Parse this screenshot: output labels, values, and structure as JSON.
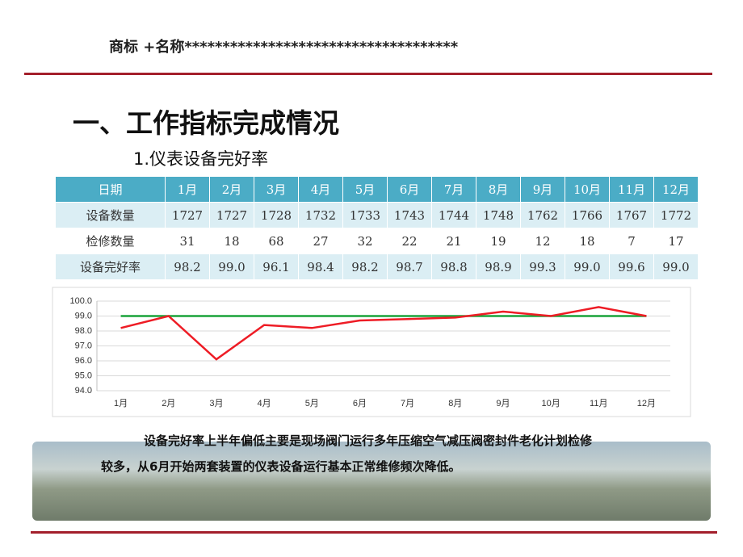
{
  "header": {
    "title": "商标 +名称************************************"
  },
  "section_title": "一、工作指标完成情况",
  "subtitle": "1.仪表设备完好率",
  "table": {
    "header": [
      "日期",
      "1月",
      "2月",
      "3月",
      "4月",
      "5月",
      "6月",
      "7月",
      "8月",
      "9月",
      "10月",
      "11月",
      "12月"
    ],
    "rows": [
      [
        "设备数量",
        "1727",
        "1727",
        "1728",
        "1732",
        "1733",
        "1743",
        "1744",
        "1748",
        "1762",
        "1766",
        "1767",
        "1772"
      ],
      [
        "检修数量",
        "31",
        "18",
        "68",
        "27",
        "32",
        "22",
        "21",
        "19",
        "12",
        "18",
        "7",
        "17"
      ],
      [
        "设备完好率",
        "98.2",
        "99.0",
        "96.1",
        "98.4",
        "98.2",
        "98.7",
        "98.8",
        "98.9",
        "99.3",
        "99.0",
        "99.6",
        "99.0"
      ]
    ]
  },
  "chart_data": {
    "type": "line",
    "categories": [
      "1月",
      "2月",
      "3月",
      "4月",
      "5月",
      "6月",
      "7月",
      "8月",
      "9月",
      "10月",
      "11月",
      "12月"
    ],
    "series": [
      {
        "color": "#ee1c25",
        "values": [
          98.2,
          99.0,
          96.1,
          98.4,
          98.2,
          98.7,
          98.8,
          98.9,
          99.3,
          99.0,
          99.6,
          99.0
        ]
      },
      {
        "color": "#1aa33a",
        "values": [
          99.0,
          99.0,
          99.0,
          99.0,
          99.0,
          99.0,
          99.0,
          99.0,
          99.0,
          99.0,
          99.0,
          99.0
        ]
      }
    ],
    "ylim": [
      94,
      100
    ],
    "yticks": [
      {
        "value": 94,
        "label": "94.0"
      },
      {
        "value": 95,
        "label": "95.0"
      },
      {
        "value": 96,
        "label": "96.0"
      },
      {
        "value": 97,
        "label": "97.0"
      },
      {
        "value": 98,
        "label": "98.0"
      },
      {
        "value": 99,
        "label": "99.0"
      },
      {
        "value": 100,
        "label": "100.0"
      }
    ],
    "grid": true
  },
  "paragraph": [
    "设备完好率上半年偏低主要是现场阀门运行多年压缩空气减压阀密封件老化计划检修",
    "较多，从6月开始两套装置的仪表设备运行基本正常维修频次降低。"
  ]
}
